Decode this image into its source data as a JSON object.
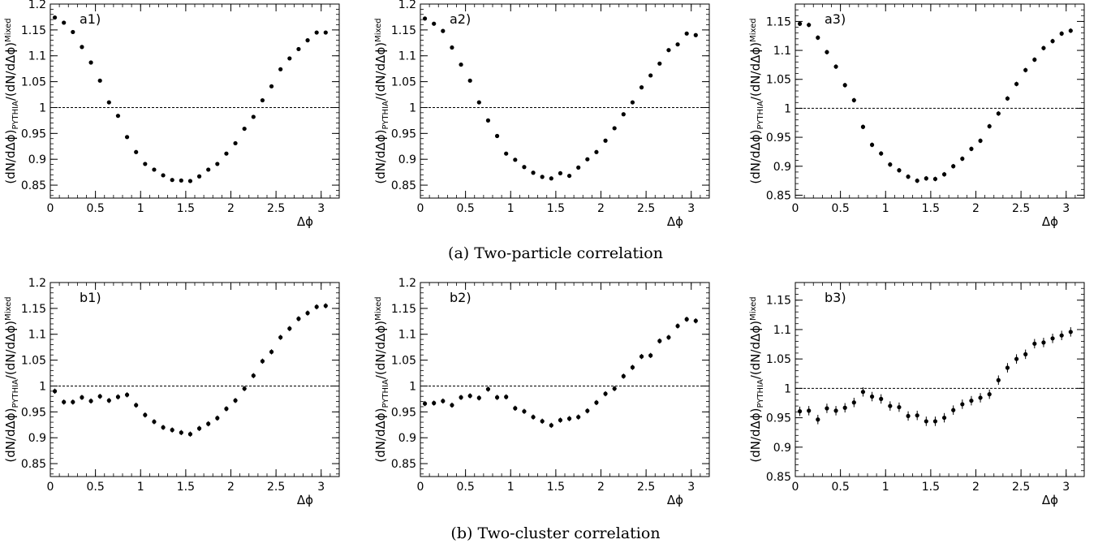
{
  "captions": {
    "a": "(a) Two-particle correlation",
    "b": "(b) Two-cluster correlation"
  },
  "axis": {
    "xlabel": "Δϕ",
    "ylabel_parts": [
      "(dN/dΔϕ)",
      "PYTHIA",
      "/(dN/dΔϕ)",
      "Mixed"
    ]
  },
  "chart_data": [
    {
      "type": "scatter",
      "panel": "a1)",
      "xlim": [
        0,
        3.2
      ],
      "ylim": [
        0.825,
        1.2
      ],
      "xticks": [
        0,
        0.5,
        1,
        1.5,
        2,
        2.5,
        3
      ],
      "yticks": [
        0.85,
        0.9,
        0.95,
        1,
        1.05,
        1.1,
        1.15,
        1.2
      ],
      "reference_line": 1,
      "x": [
        0.05,
        0.15,
        0.25,
        0.35,
        0.45,
        0.55,
        0.65,
        0.75,
        0.85,
        0.95,
        1.05,
        1.15,
        1.25,
        1.35,
        1.45,
        1.55,
        1.65,
        1.75,
        1.85,
        1.95,
        2.05,
        2.15,
        2.25,
        2.35,
        2.45,
        2.55,
        2.65,
        2.75,
        2.85,
        2.95,
        3.05
      ],
      "y": [
        1.174,
        1.164,
        1.146,
        1.117,
        1.087,
        1.052,
        1.01,
        0.984,
        0.943,
        0.914,
        0.891,
        0.88,
        0.869,
        0.86,
        0.859,
        0.858,
        0.867,
        0.88,
        0.891,
        0.911,
        0.931,
        0.959,
        0.982,
        1.014,
        1.041,
        1.074,
        1.095,
        1.113,
        1.13,
        1.145,
        1.145
      ],
      "yerr": 0.003
    },
    {
      "type": "scatter",
      "panel": "a2)",
      "xlim": [
        0,
        3.2
      ],
      "ylim": [
        0.825,
        1.2
      ],
      "xticks": [
        0,
        0.5,
        1,
        1.5,
        2,
        2.5,
        3
      ],
      "yticks": [
        0.85,
        0.9,
        0.95,
        1,
        1.05,
        1.1,
        1.15,
        1.2
      ],
      "reference_line": 1,
      "x": [
        0.05,
        0.15,
        0.25,
        0.35,
        0.45,
        0.55,
        0.65,
        0.75,
        0.85,
        0.95,
        1.05,
        1.15,
        1.25,
        1.35,
        1.45,
        1.55,
        1.65,
        1.75,
        1.85,
        1.95,
        2.05,
        2.15,
        2.25,
        2.35,
        2.45,
        2.55,
        2.65,
        2.75,
        2.85,
        2.95,
        3.05
      ],
      "y": [
        1.172,
        1.162,
        1.148,
        1.116,
        1.083,
        1.052,
        1.01,
        0.975,
        0.945,
        0.911,
        0.899,
        0.885,
        0.874,
        0.866,
        0.863,
        0.873,
        0.868,
        0.884,
        0.9,
        0.914,
        0.936,
        0.96,
        0.987,
        1.01,
        1.039,
        1.062,
        1.085,
        1.111,
        1.122,
        1.143,
        1.14
      ],
      "yerr": 0.003
    },
    {
      "type": "scatter",
      "panel": "a3)",
      "xlim": [
        0,
        3.2
      ],
      "ylim": [
        0.845,
        1.18
      ],
      "xticks": [
        0,
        0.5,
        1,
        1.5,
        2,
        2.5,
        3
      ],
      "yticks": [
        0.85,
        0.9,
        0.95,
        1,
        1.05,
        1.1,
        1.15
      ],
      "reference_line": 1,
      "x": [
        0.05,
        0.15,
        0.25,
        0.35,
        0.45,
        0.55,
        0.65,
        0.75,
        0.85,
        0.95,
        1.05,
        1.15,
        1.25,
        1.35,
        1.45,
        1.55,
        1.65,
        1.75,
        1.85,
        1.95,
        2.05,
        2.15,
        2.25,
        2.35,
        2.45,
        2.55,
        2.65,
        2.75,
        2.85,
        2.95,
        3.05
      ],
      "y": [
        1.146,
        1.144,
        1.122,
        1.097,
        1.072,
        1.04,
        1.014,
        0.968,
        0.937,
        0.922,
        0.903,
        0.893,
        0.882,
        0.875,
        0.879,
        0.878,
        0.886,
        0.9,
        0.913,
        0.93,
        0.944,
        0.969,
        0.991,
        1.017,
        1.042,
        1.066,
        1.084,
        1.104,
        1.116,
        1.129,
        1.134
      ],
      "yerr": 0.004
    },
    {
      "type": "scatter",
      "panel": "b1)",
      "xlim": [
        0,
        3.2
      ],
      "ylim": [
        0.825,
        1.2
      ],
      "xticks": [
        0,
        0.5,
        1,
        1.5,
        2,
        2.5,
        3
      ],
      "yticks": [
        0.85,
        0.9,
        0.95,
        1,
        1.05,
        1.1,
        1.15,
        1.2
      ],
      "reference_line": 1,
      "x": [
        0.05,
        0.15,
        0.25,
        0.35,
        0.45,
        0.55,
        0.65,
        0.75,
        0.85,
        0.95,
        1.05,
        1.15,
        1.25,
        1.35,
        1.45,
        1.55,
        1.65,
        1.75,
        1.85,
        1.95,
        2.05,
        2.15,
        2.25,
        2.35,
        2.45,
        2.55,
        2.65,
        2.75,
        2.85,
        2.95,
        3.05
      ],
      "y": [
        0.99,
        0.969,
        0.969,
        0.978,
        0.971,
        0.98,
        0.972,
        0.979,
        0.983,
        0.963,
        0.944,
        0.931,
        0.92,
        0.915,
        0.91,
        0.907,
        0.918,
        0.927,
        0.938,
        0.956,
        0.972,
        0.995,
        1.02,
        1.048,
        1.066,
        1.094,
        1.111,
        1.13,
        1.141,
        1.153,
        1.155
      ],
      "yerr": 0.005
    },
    {
      "type": "scatter",
      "panel": "b2)",
      "xlim": [
        0,
        3.2
      ],
      "ylim": [
        0.825,
        1.2
      ],
      "xticks": [
        0,
        0.5,
        1,
        1.5,
        2,
        2.5,
        3
      ],
      "yticks": [
        0.85,
        0.9,
        0.95,
        1,
        1.05,
        1.1,
        1.15,
        1.2
      ],
      "reference_line": 1,
      "x": [
        0.05,
        0.15,
        0.25,
        0.35,
        0.45,
        0.55,
        0.65,
        0.75,
        0.85,
        0.95,
        1.05,
        1.15,
        1.25,
        1.35,
        1.45,
        1.55,
        1.65,
        1.75,
        1.85,
        1.95,
        2.05,
        2.15,
        2.25,
        2.35,
        2.45,
        2.55,
        2.65,
        2.75,
        2.85,
        2.95,
        3.05
      ],
      "y": [
        0.966,
        0.967,
        0.971,
        0.963,
        0.978,
        0.981,
        0.977,
        0.994,
        0.978,
        0.979,
        0.957,
        0.951,
        0.94,
        0.932,
        0.924,
        0.934,
        0.937,
        0.94,
        0.952,
        0.968,
        0.985,
        0.995,
        1.019,
        1.036,
        1.057,
        1.059,
        1.087,
        1.094,
        1.116,
        1.129,
        1.126
      ],
      "yerr": 0.005
    },
    {
      "type": "scatter",
      "panel": "b3)",
      "xlim": [
        0,
        3.2
      ],
      "ylim": [
        0.85,
        1.18
      ],
      "xticks": [
        0,
        0.5,
        1,
        1.5,
        2,
        2.5,
        3
      ],
      "yticks": [
        0.85,
        0.9,
        0.95,
        1,
        1.05,
        1.1,
        1.15
      ],
      "reference_line": 1,
      "x": [
        0.05,
        0.15,
        0.25,
        0.35,
        0.45,
        0.55,
        0.65,
        0.75,
        0.85,
        0.95,
        1.05,
        1.15,
        1.25,
        1.35,
        1.45,
        1.55,
        1.65,
        1.75,
        1.85,
        1.95,
        2.05,
        2.15,
        2.25,
        2.35,
        2.45,
        2.55,
        2.65,
        2.75,
        2.85,
        2.95,
        3.05
      ],
      "y": [
        0.961,
        0.962,
        0.947,
        0.966,
        0.962,
        0.967,
        0.976,
        0.994,
        0.986,
        0.982,
        0.97,
        0.968,
        0.953,
        0.954,
        0.944,
        0.944,
        0.95,
        0.963,
        0.973,
        0.979,
        0.984,
        0.99,
        1.014,
        1.035,
        1.05,
        1.058,
        1.076,
        1.078,
        1.085,
        1.09,
        1.096
      ],
      "yerr": 0.008
    }
  ]
}
